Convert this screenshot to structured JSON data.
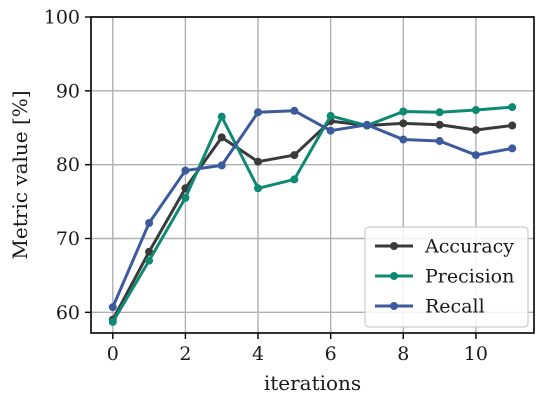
{
  "chart_data": {
    "type": "line",
    "xlabel": "iterations",
    "ylabel": "Metric value [%]",
    "xlim": [
      -0.6,
      11.6
    ],
    "ylim": [
      57.2,
      100
    ],
    "x_ticks": [
      0,
      2,
      4,
      6,
      8,
      10
    ],
    "y_ticks": [
      60,
      70,
      80,
      90,
      100
    ],
    "grid": true,
    "legend_position": "bottom-right",
    "x": [
      0,
      1,
      2,
      3,
      4,
      5,
      6,
      7,
      8,
      9,
      10,
      11
    ],
    "series": [
      {
        "name": "Accuracy",
        "color": "#3a3a3a",
        "values": [
          59.0,
          68.2,
          76.8,
          83.7,
          80.4,
          81.3,
          85.9,
          85.3,
          85.6,
          85.4,
          84.7,
          85.3
        ]
      },
      {
        "name": "Precision",
        "color": "#0f8a72",
        "values": [
          58.7,
          67.0,
          75.5,
          86.5,
          76.8,
          78.0,
          86.6,
          85.3,
          87.2,
          87.1,
          87.4,
          87.8
        ]
      },
      {
        "name": "Recall",
        "color": "#3d5a9e",
        "values": [
          60.7,
          72.1,
          79.2,
          79.9,
          87.1,
          87.3,
          84.6,
          85.4,
          83.4,
          83.2,
          81.3,
          82.2
        ]
      }
    ]
  }
}
